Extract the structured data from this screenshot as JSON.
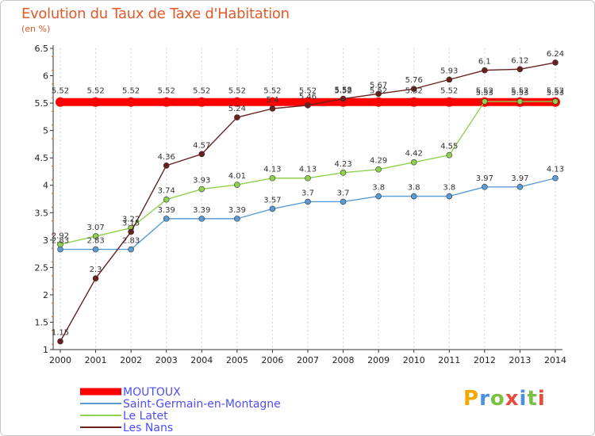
{
  "chart_data": {
    "type": "line",
    "title": "Evolution du Taux de Taxe d'Habitation",
    "unit_label": "(en %)",
    "xlabel": "",
    "ylabel": "",
    "ylim": [
      1,
      6.5
    ],
    "y_ticks": [
      "1",
      "1.5",
      "2",
      "2.5",
      "3",
      "3.5",
      "4",
      "4.5",
      "5",
      "5.5",
      "6",
      "6.5"
    ],
    "categories": [
      "2000",
      "2001",
      "2002",
      "2003",
      "2004",
      "2005",
      "2006",
      "2007",
      "2008",
      "2009",
      "2010",
      "2011",
      "2012",
      "2013",
      "2014"
    ],
    "series": [
      {
        "name": "MOUTOUX",
        "color": "#ff0000",
        "values": [
          5.52,
          5.52,
          5.52,
          5.52,
          5.52,
          5.52,
          5.52,
          5.52,
          5.52,
          5.52,
          5.52,
          5.52,
          5.52,
          5.52,
          5.52
        ],
        "labels": [
          "5.52",
          "5.52",
          "5.52",
          "5.52",
          "5.52",
          "5.52",
          "5.52",
          "5.52",
          "5.52",
          "5.52",
          "5.52",
          "5.52",
          "5.52",
          "5.52",
          "5.52"
        ]
      },
      {
        "name": "Saint-Germain-en-Montagne",
        "color": "#5b9bd5",
        "values": [
          2.83,
          2.83,
          2.83,
          3.39,
          3.39,
          3.39,
          3.57,
          3.7,
          3.7,
          3.8,
          3.8,
          3.8,
          3.97,
          3.97,
          4.13
        ],
        "labels": [
          "2.83",
          "2.83",
          "2.83",
          "3.39",
          "3.39",
          "3.39",
          "3.57",
          "3.7",
          "3.7",
          "3.8",
          "3.8",
          "3.8",
          "3.97",
          "3.97",
          "4.13"
        ]
      },
      {
        "name": "Le Latet",
        "color": "#8fd14f",
        "values": [
          2.92,
          3.07,
          3.22,
          3.74,
          3.93,
          4.01,
          4.13,
          4.13,
          4.23,
          4.29,
          4.42,
          4.55,
          5.53,
          5.53,
          5.53
        ],
        "labels": [
          "2.92",
          "3.07",
          "3.22",
          "3.74",
          "3.93",
          "4.01",
          "4.13",
          "4.13",
          "4.23",
          "4.29",
          "4.42",
          "4.55",
          "5.53",
          "5.53",
          "5.53"
        ]
      },
      {
        "name": "Les Nans",
        "color": "#6b1f1f",
        "values": [
          1.15,
          2.3,
          3.15,
          4.36,
          4.57,
          5.24,
          5.4,
          5.46,
          5.58,
          5.67,
          5.76,
          5.93,
          6.1,
          6.12,
          6.24
        ],
        "labels": [
          "1.15",
          "2.3",
          "3.15",
          "4.36",
          "4.57",
          "5.24",
          "5.4",
          "5.46",
          "5.58",
          "5.67",
          "5.76",
          "5.93",
          "6.1",
          "6.12",
          "6.24"
        ]
      }
    ],
    "legend_position": "bottom-left"
  },
  "branding": {
    "logo_text": "Proxiti",
    "colors": [
      "#f2a900",
      "#4a90e2",
      "#7bc043",
      "#e74c3c",
      "#4a90e2",
      "#7bc043",
      "#e74c3c"
    ]
  }
}
